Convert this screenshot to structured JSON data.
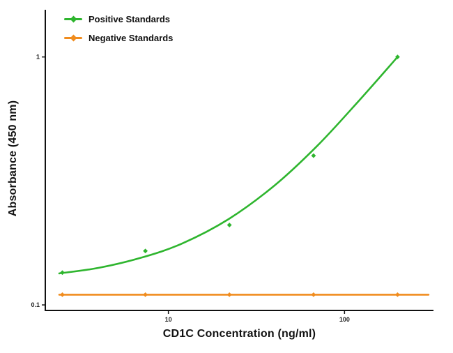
{
  "chart_data": {
    "type": "line",
    "title": "",
    "xlabel": "CD1C Concentration (ng/ml)",
    "ylabel": "Absorbance (450 nm)",
    "x_scale": "log",
    "y_scale": "log",
    "xlim": [
      2.0,
      320
    ],
    "ylim": [
      0.095,
      1.55
    ],
    "x_ticks": [
      10,
      100
    ],
    "x_tick_labels": [
      "10",
      "100"
    ],
    "y_ticks": [
      0.1,
      1
    ],
    "y_tick_labels": [
      "0.1",
      "1"
    ],
    "grid": false,
    "legend_position": "top-left",
    "series": [
      {
        "name": "Positive Standards",
        "color": "#2eb52e",
        "marker": "diamond",
        "x": [
          2.5,
          7.4,
          22.2,
          66.7,
          200
        ],
        "y": [
          0.135,
          0.165,
          0.21,
          0.4,
          1.0
        ],
        "trend_x": [
          2.4,
          4,
          7,
          12,
          22,
          40,
          70,
          120,
          200
        ],
        "trend_y": [
          0.134,
          0.141,
          0.155,
          0.177,
          0.222,
          0.303,
          0.438,
          0.663,
          1.0
        ]
      },
      {
        "name": "Negative Standards",
        "color": "#f08c1e",
        "marker": "diamond",
        "x": [
          2.5,
          7.4,
          22.2,
          66.7,
          200
        ],
        "y": [
          0.11,
          0.11,
          0.11,
          0.11,
          0.11
        ],
        "trend_x": [
          2.4,
          300
        ],
        "trend_y": [
          0.11,
          0.11
        ]
      }
    ]
  }
}
